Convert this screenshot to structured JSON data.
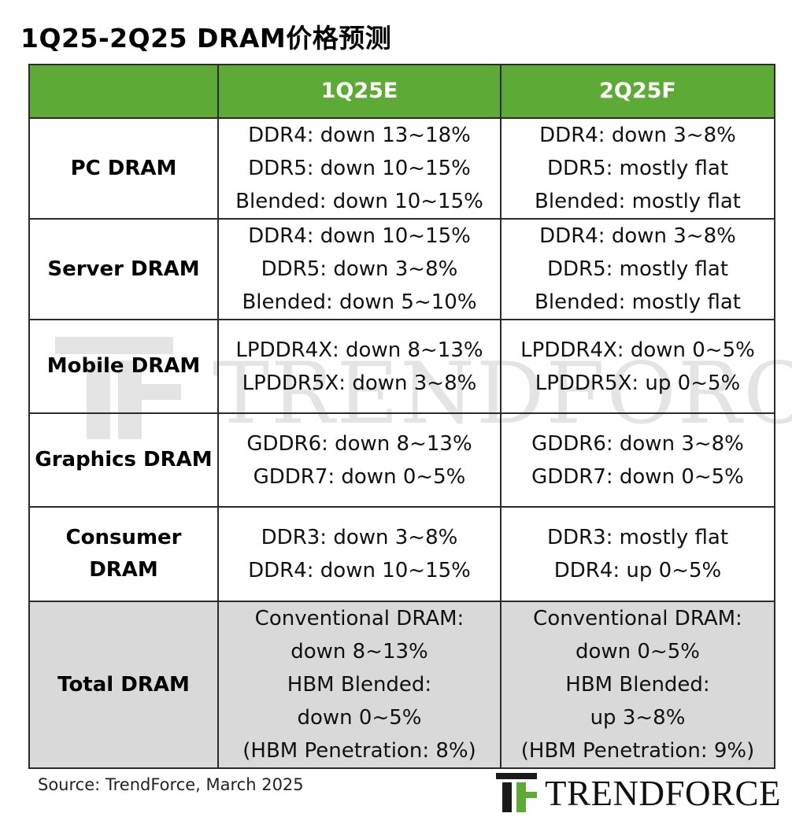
{
  "title": "1Q25-2Q25 DRAM价格预测",
  "chart_data": {
    "type": "table",
    "title": "1Q25-2Q25 DRAM价格预测",
    "columns": [
      "",
      "1Q25E",
      "2Q25F"
    ],
    "rows": [
      {
        "category": "PC DRAM",
        "q1": [
          "DDR4: down 13~18%",
          "DDR5: down 10~15%",
          "Blended: down 10~15%"
        ],
        "q2": [
          "DDR4: down 3~8%",
          "DDR5: mostly flat",
          "Blended: mostly flat"
        ]
      },
      {
        "category": "Server DRAM",
        "q1": [
          "DDR4: down 10~15%",
          "DDR5: down 3~8%",
          "Blended: down 5~10%"
        ],
        "q2": [
          "DDR4: down 3~8%",
          "DDR5: mostly flat",
          "Blended: mostly flat"
        ]
      },
      {
        "category": "Mobile DRAM",
        "q1": [
          "LPDDR4X: down 8~13%",
          "LPDDR5X: down 3~8%"
        ],
        "q2": [
          "LPDDR4X: down 0~5%",
          "LPDDR5X: up 0~5%"
        ]
      },
      {
        "category": "Graphics DRAM",
        "q1": [
          "GDDR6: down 8~13%",
          "GDDR7: down 0~5%"
        ],
        "q2": [
          "GDDR6: down 3~8%",
          "GDDR7: down 0~5%"
        ]
      },
      {
        "category": "Consumer DRAM",
        "category_lines": [
          "Consumer",
          "DRAM"
        ],
        "q1": [
          "DDR3: down 3~8%",
          "DDR4: down 10~15%"
        ],
        "q2": [
          "DDR3: mostly flat",
          "DDR4: up 0~5%"
        ]
      },
      {
        "category": "Total DRAM",
        "q1": [
          "Conventional DRAM:",
          "down 8~13%",
          "HBM Blended:",
          "down 0~5%",
          "(HBM Penetration: 8%)"
        ],
        "q2": [
          "Conventional DRAM:",
          "down 0~5%",
          "HBM Blended:",
          "up 3~8%",
          "(HBM Penetration: 9%)"
        ]
      }
    ]
  },
  "source": "Source: TrendForce, March 2025",
  "logo_text": "TRENDFORCE",
  "watermark_text": "TRENDFORCE",
  "colors": {
    "header_green": "#5daa36",
    "total_row_gray": "#d9d9d9",
    "border": "#2b2b2b",
    "logo_dark": "#1a1a1a",
    "logo_green": "#5daa36"
  }
}
